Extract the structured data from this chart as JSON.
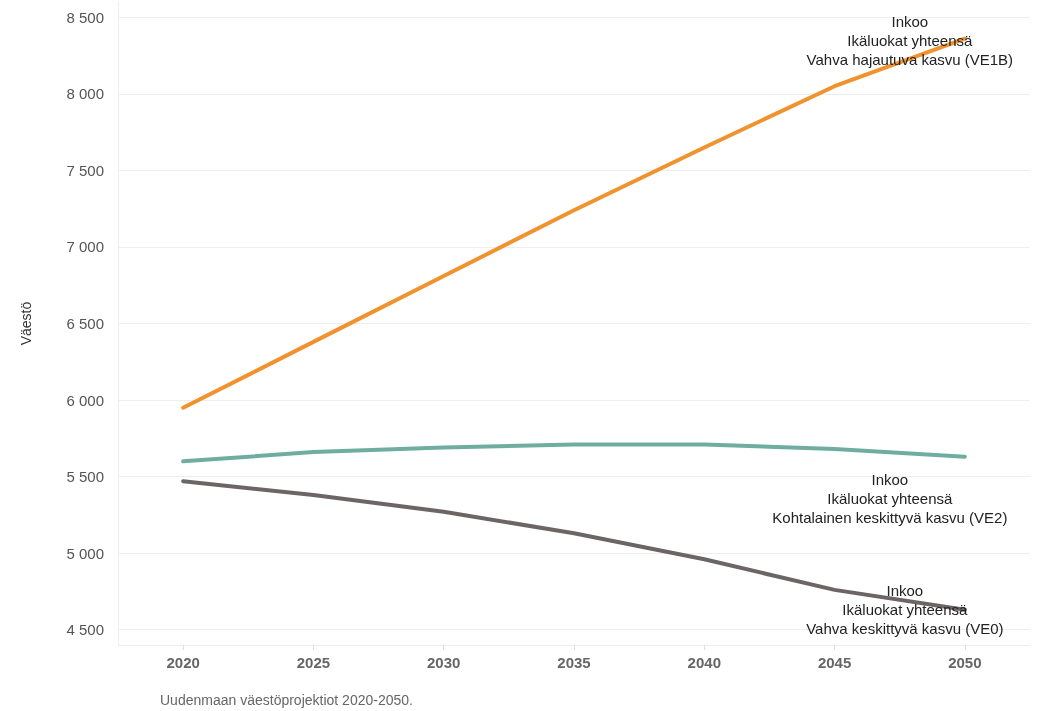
{
  "chart_data": {
    "type": "line",
    "ylabel": "Väestö",
    "x": [
      2020,
      2025,
      2030,
      2035,
      2040,
      2045,
      2050
    ],
    "series": [
      {
        "name": "Inkoo\nIkäluokat yhteensä\nVahva hajautuva kasvu (VE1B)",
        "color": "#f0922e",
        "values": [
          5950,
          6380,
          6810,
          7240,
          7650,
          8050,
          8360
        ]
      },
      {
        "name": "Inkoo\nIkäluokat yhteensä\nKohtalainen keskittyvä kasvu (VE2)",
        "color": "#6fada0",
        "values": [
          5600,
          5660,
          5690,
          5710,
          5710,
          5680,
          5630
        ]
      },
      {
        "name": "Inkoo\nIkäluokat yhteensä\nVahva keskittyvä kasvu (VE0)",
        "color": "#6b6566",
        "values": [
          5470,
          5380,
          5270,
          5130,
          4960,
          4760,
          4630
        ]
      }
    ],
    "xlim": [
      2017.5,
      2052.5
    ],
    "xticks": [
      2020,
      2025,
      2030,
      2035,
      2040,
      2045,
      2050
    ],
    "ylim": [
      4400,
      8600
    ],
    "yticks": [
      {
        "value": 4500,
        "label": "4 500"
      },
      {
        "value": 5000,
        "label": "5 000"
      },
      {
        "value": 5500,
        "label": "5 500"
      },
      {
        "value": 6000,
        "label": "6 000"
      },
      {
        "value": 6500,
        "label": "6 500"
      },
      {
        "value": 7000,
        "label": "7 000"
      },
      {
        "value": 7500,
        "label": "7 500"
      },
      {
        "value": 8000,
        "label": "8 000"
      },
      {
        "value": 8500,
        "label": "8 500"
      }
    ],
    "grid": "y",
    "legend": false,
    "marker": "none",
    "line_style": "solid",
    "annotations": [
      "Uudenmaan väestöprojektiot 2020-2050."
    ]
  }
}
